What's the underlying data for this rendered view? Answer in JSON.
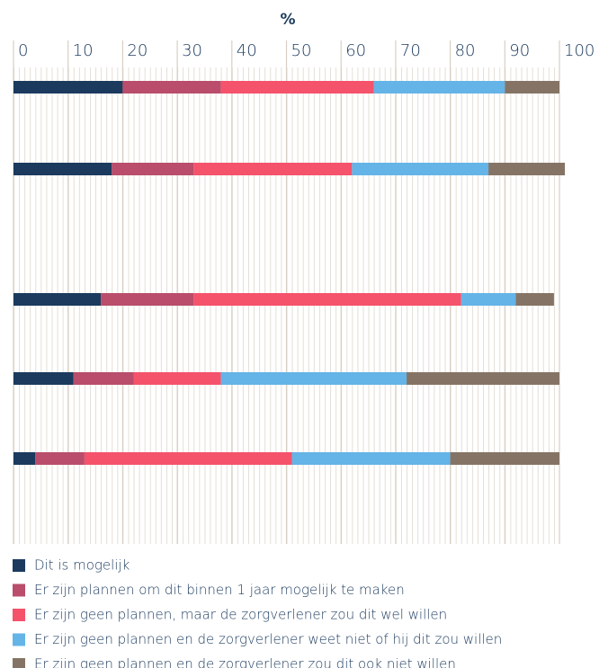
{
  "chart_data": {
    "type": "stacked_barh",
    "title": "%",
    "categories": [
      null,
      null,
      null,
      null,
      null
    ],
    "series": [
      {
        "name": "Dit is mogelijk",
        "color": "#1b3a5e",
        "values": [
          20,
          18,
          16,
          11,
          4
        ]
      },
      {
        "name": "Er zijn plannen om dit binnen 1 jaar mogelijk te maken",
        "color": "#b94d6b",
        "values": [
          18,
          15,
          17,
          11,
          9
        ]
      },
      {
        "name": "Er zijn geen plannen, maar de zorgverlener zou dit wel willen",
        "color": "#f5526b",
        "values": [
          28,
          29,
          49,
          16,
          38
        ]
      },
      {
        "name": "Er zijn geen plannen en de zorgverlener weet niet of hij dit zou willen",
        "color": "#64b4e7",
        "values": [
          24,
          25,
          10,
          34,
          29
        ]
      },
      {
        "name": "Er zijn geen plannen en de zorgverlener zou dit ook niet willen",
        "color": "#857465",
        "values": [
          10,
          14,
          7,
          28,
          20
        ]
      }
    ],
    "xlim": [
      0,
      100
    ],
    "xticks": [
      0,
      10,
      20,
      30,
      40,
      50,
      60,
      70,
      80,
      90,
      100
    ],
    "grid": true
  }
}
